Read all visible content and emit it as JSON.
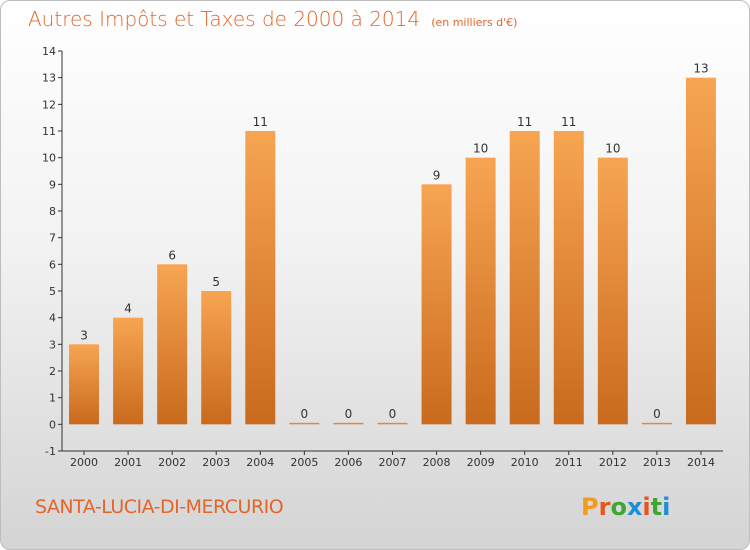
{
  "chart_data": {
    "type": "bar",
    "title": "Autres Impôts et Taxes de 2000 à 2014",
    "subtitle": "(en milliers d'€)",
    "categories": [
      "2000",
      "2001",
      "2002",
      "2003",
      "2004",
      "2005",
      "2006",
      "2007",
      "2008",
      "2009",
      "2010",
      "2011",
      "2012",
      "2013",
      "2014"
    ],
    "values": [
      3,
      4,
      6,
      5,
      11,
      0,
      0,
      0,
      9,
      10,
      11,
      11,
      10,
      0,
      13
    ],
    "ylim": [
      -1,
      14
    ],
    "yticks": [
      -1,
      0,
      1,
      2,
      3,
      4,
      5,
      6,
      7,
      8,
      9,
      10,
      11,
      12,
      13,
      14
    ],
    "grid": false,
    "xlabel": "",
    "ylabel": "",
    "bar_color": "#f0913a"
  },
  "footer": {
    "commune": "SANTA-LUCIA-DI-MERCURIO",
    "logo_letters": [
      "P",
      "r",
      "o",
      "x",
      "i",
      "t",
      "i"
    ],
    "logo_colors": [
      "#f29b1c",
      "#e8541a",
      "#3fa535",
      "#1a8fd6",
      "#e8541a",
      "#3fa535",
      "#1a8fd6"
    ]
  }
}
